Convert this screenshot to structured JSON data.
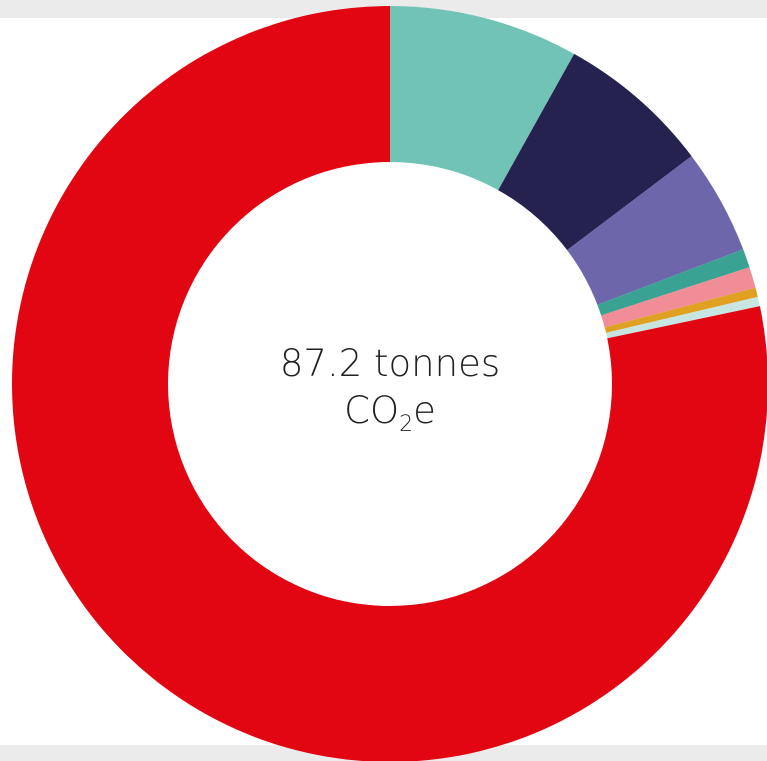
{
  "chart_data": {
    "type": "pie",
    "variant": "donut",
    "total_label": {
      "line1": "87.2 tonnes",
      "co": "CO",
      "sub": "2",
      "e": "e"
    },
    "slices": [
      {
        "value": 8.1,
        "color": "#71c3b5"
      },
      {
        "value": 6.6,
        "color": "#262250"
      },
      {
        "value": 4.5,
        "color": "#6e66aa"
      },
      {
        "value": 0.8,
        "color": "#3aa293"
      },
      {
        "value": 0.9,
        "color": "#f18d96"
      },
      {
        "value": 0.4,
        "color": "#e0a021"
      },
      {
        "value": 0.4,
        "color": "#c8e6e1"
      },
      {
        "value": 78.3,
        "color": "#e20613"
      }
    ],
    "start_angle_deg": 0,
    "direction": "clockwise"
  }
}
